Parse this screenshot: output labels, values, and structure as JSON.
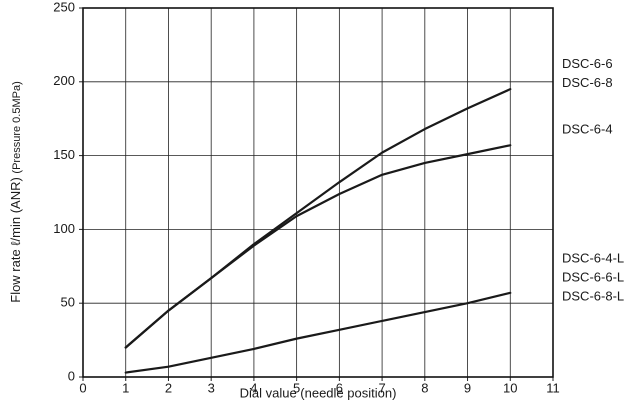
{
  "chart_data": {
    "type": "line",
    "x_label": "Dial value (needle position)",
    "y_label": "Flow rate ℓ/min (ANR)",
    "y_label_note": "(Pressure 0.5MPa)",
    "x": [
      1,
      2,
      3,
      4,
      5,
      6,
      7,
      8,
      9,
      10
    ],
    "series": [
      {
        "names": [
          "DSC-6-6",
          "DSC-6-8"
        ],
        "color": "#1a1a1a",
        "values": [
          20,
          45,
          67,
          90,
          111,
          132,
          152,
          168,
          182,
          195
        ]
      },
      {
        "names": [
          "DSC-6-4"
        ],
        "color": "#1a1a1a",
        "values": [
          20,
          45,
          67,
          89,
          109,
          124,
          137,
          145,
          151,
          157
        ]
      },
      {
        "names": [
          "DSC-6-4-L",
          "DSC-6-6-L",
          "DSC-6-8-L"
        ],
        "color": "#1a1a1a",
        "values": [
          3,
          7,
          13,
          19,
          26,
          32,
          38,
          44,
          50,
          57
        ]
      }
    ],
    "xlim": [
      0,
      11
    ],
    "xticks": [
      0,
      1,
      2,
      3,
      4,
      5,
      6,
      7,
      8,
      9,
      10,
      11
    ],
    "ylim": [
      0,
      250
    ],
    "yticks": [
      0,
      50,
      100,
      150,
      200,
      250
    ],
    "grid": true
  }
}
